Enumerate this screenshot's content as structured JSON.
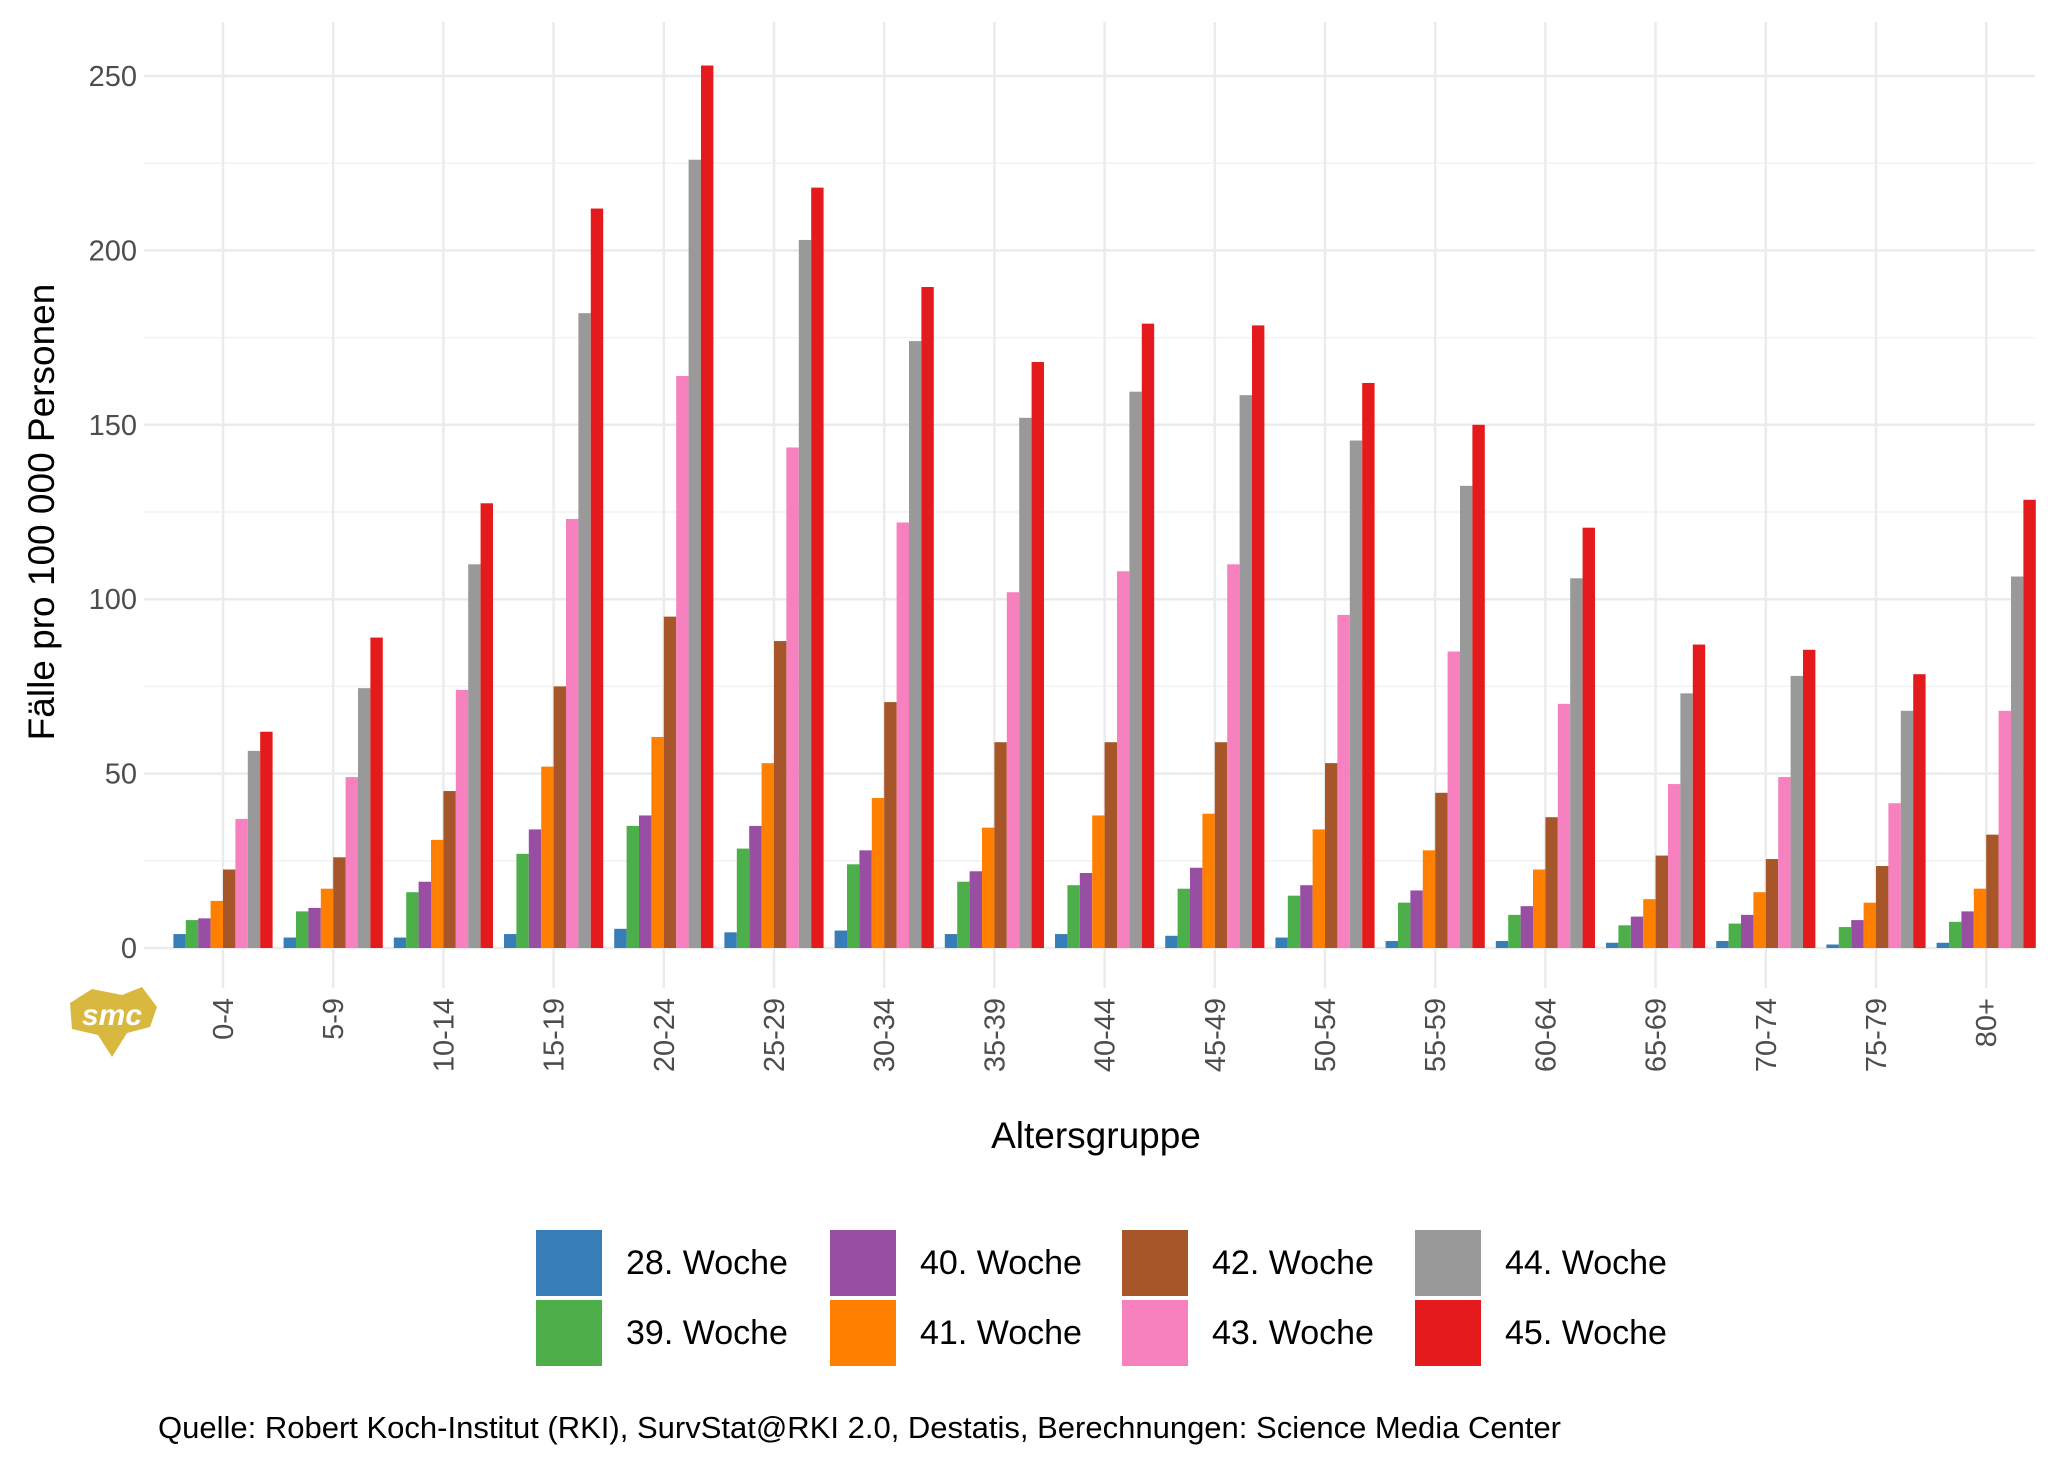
{
  "chart_data": {
    "type": "bar",
    "title": "",
    "xlabel": "Altersgruppe",
    "ylabel": "Fälle pro 100 000 Personen",
    "ylim": [
      0,
      250
    ],
    "yticks": [
      0,
      50,
      100,
      150,
      200,
      250
    ],
    "grid": true,
    "legend_position": "bottom",
    "categories": [
      "0-4",
      "5-9",
      "10-14",
      "15-19",
      "20-24",
      "25-29",
      "30-34",
      "35-39",
      "40-44",
      "45-49",
      "50-54",
      "55-59",
      "60-64",
      "65-69",
      "70-74",
      "75-79",
      "80+"
    ],
    "series": [
      {
        "name": "28. Woche",
        "color": "#377EB8",
        "values": [
          4,
          3,
          3,
          4,
          5.5,
          4.5,
          5,
          4,
          4,
          3.5,
          3,
          2,
          2,
          1.5,
          2,
          1,
          1.5
        ]
      },
      {
        "name": "39. Woche",
        "color": "#4DAF4A",
        "values": [
          8,
          10.5,
          16,
          27,
          35,
          28.5,
          24,
          19,
          18,
          17,
          15,
          13,
          9.5,
          6.5,
          7,
          6,
          7.5
        ]
      },
      {
        "name": "40. Woche",
        "color": "#984EA3",
        "values": [
          8.5,
          11.5,
          19,
          34,
          38,
          35,
          28,
          22,
          21.5,
          23,
          18,
          16.5,
          12,
          9,
          9.5,
          8,
          10.5
        ]
      },
      {
        "name": "41. Woche",
        "color": "#FF7F00",
        "values": [
          13.5,
          17,
          31,
          52,
          60.5,
          53,
          43,
          34.5,
          38,
          38.5,
          34,
          28,
          22.5,
          14,
          16,
          13,
          17
        ]
      },
      {
        "name": "42. Woche",
        "color": "#A65628",
        "values": [
          22.5,
          26,
          45,
          75,
          95,
          88,
          70.5,
          59,
          59,
          59,
          53,
          44.5,
          37.5,
          26.5,
          25.5,
          23.5,
          32.5
        ]
      },
      {
        "name": "43. Woche",
        "color": "#F781BF",
        "values": [
          37,
          49,
          74,
          123,
          164,
          143.5,
          122,
          102,
          108,
          110,
          95.5,
          85,
          70,
          47,
          49,
          41.5,
          68
        ]
      },
      {
        "name": "44. Woche",
        "color": "#999999",
        "values": [
          56.5,
          74.5,
          110,
          182,
          226,
          203,
          174,
          152,
          159.5,
          158.5,
          145.5,
          132.5,
          106,
          73,
          78,
          68,
          106.5
        ]
      },
      {
        "name": "45. Woche",
        "color": "#E41A1C",
        "values": [
          62,
          89,
          127.5,
          212,
          253,
          218,
          189.5,
          168,
          179,
          178.5,
          162,
          150,
          120.5,
          87,
          85.5,
          78.5,
          128.5
        ]
      }
    ],
    "caption": "Quelle: Robert Koch-Institut (RKI), SurvStat@RKI 2.0, Destatis, Berechnungen: Science Media Center",
    "logo_text": "smc"
  }
}
